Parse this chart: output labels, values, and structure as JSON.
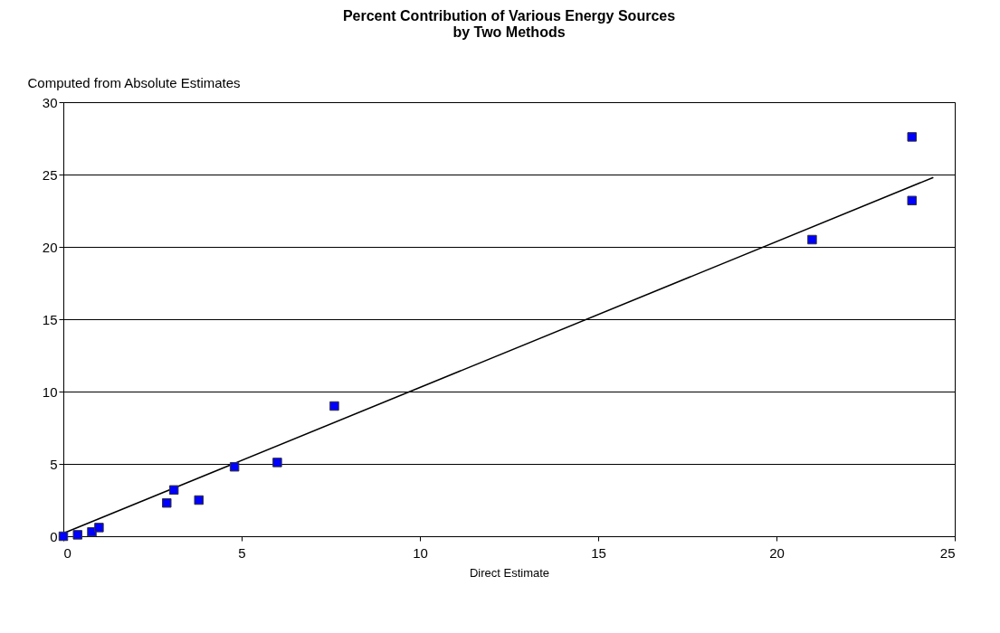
{
  "chart_data": {
    "type": "scatter",
    "title": "Percent Contribution of Various Energy Sources\nby Two Methods",
    "xlabel": "Direct Estimate",
    "ylabel": "Computed from Absolute Estimates",
    "xlim": [
      0,
      25
    ],
    "xticks": [
      0,
      5,
      10,
      15,
      20,
      25
    ],
    "ylim": [
      0,
      30
    ],
    "yticks": [
      0,
      5,
      10,
      15,
      20,
      25,
      30
    ],
    "grid": "y",
    "series": [
      {
        "color": "#0000ff",
        "marker": "square",
        "x": [
          0,
          0.4,
          0.8,
          1.0,
          2.9,
          3.1,
          3.8,
          4.8,
          6.0,
          7.6,
          21.0,
          23.8,
          23.8
        ],
        "values": [
          0,
          0.1,
          0.3,
          0.6,
          2.3,
          3.2,
          2.5,
          4.8,
          5.1,
          9.0,
          20.5,
          23.2,
          27.6
        ]
      },
      {
        "type": "line",
        "color": "#000000",
        "x": [
          0,
          24.4
        ],
        "values": [
          0.2,
          24.8
        ]
      }
    ]
  }
}
